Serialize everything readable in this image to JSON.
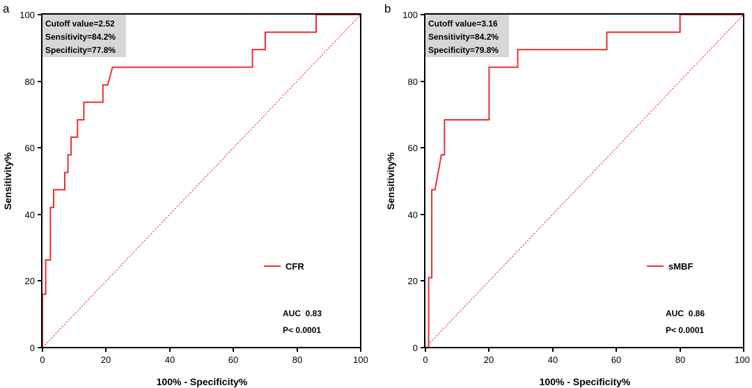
{
  "chart_data": [
    {
      "type": "line",
      "panel_label": "a",
      "xlabel": "100% - Specificity%",
      "ylabel": "Sensitivity%",
      "xlim": [
        0,
        100
      ],
      "ylim": [
        0,
        100
      ],
      "x_ticks": [
        "0",
        "20",
        "40",
        "60",
        "80",
        "100"
      ],
      "y_ticks": [
        "0",
        "20",
        "40",
        "60",
        "80",
        "100"
      ],
      "info_box": [
        "Cutoff value=2.52",
        "Sensitivity=84.2%",
        "Specificity=77.8%"
      ],
      "legend_position": "right",
      "annotations": [
        "AUC  0.83",
        "P< 0.0001"
      ],
      "colors": {
        "roc": "#e8312f",
        "reference": "#e8312f",
        "info_box": "#d7d7d7"
      },
      "series": [
        {
          "name": "CFR",
          "x": [
            0,
            0,
            1,
            1,
            2.5,
            2.5,
            3.5,
            3.5,
            7,
            7,
            8,
            8,
            9,
            9,
            11,
            11,
            13,
            13,
            19,
            19,
            20.5,
            22,
            66,
            66,
            70,
            70,
            86,
            86,
            100
          ],
          "y": [
            0,
            16,
            16,
            26.3,
            26.3,
            42.1,
            42.1,
            47.4,
            47.4,
            52.6,
            52.6,
            57.9,
            57.9,
            63.2,
            63.2,
            68.4,
            68.4,
            73.7,
            73.7,
            78.9,
            78.9,
            84.2,
            84.2,
            89.5,
            89.5,
            94.7,
            94.7,
            100,
            100
          ]
        },
        {
          "name": "",
          "x": [
            0,
            100
          ],
          "y": [
            0,
            100
          ]
        }
      ]
    },
    {
      "type": "line",
      "panel_label": "b",
      "xlabel": "100% - Specificity%",
      "ylabel": "Sensitivity%",
      "xlim": [
        0,
        100
      ],
      "ylim": [
        0,
        100
      ],
      "x_ticks": [
        "0",
        "20",
        "40",
        "60",
        "80",
        "100"
      ],
      "y_ticks": [
        "0",
        "20",
        "40",
        "60",
        "80",
        "100"
      ],
      "info_box": [
        "Cutoff value=3.16",
        "Sensitivity=84.2%",
        "Specificity=79.8%"
      ],
      "legend_position": "right",
      "annotations": [
        "AUC  0.86",
        "P< 0.0001"
      ],
      "colors": {
        "roc": "#e8312f",
        "reference": "#e8312f",
        "info_box": "#d7d7d7"
      },
      "series": [
        {
          "name": "sMBF",
          "x": [
            0,
            1,
            1,
            2,
            2,
            3,
            3,
            5,
            5,
            6,
            6,
            20,
            20,
            29,
            29,
            57,
            57,
            80,
            80,
            100
          ],
          "y": [
            0,
            0,
            21,
            21,
            47.4,
            47.4,
            47.4,
            57.9,
            57.9,
            57.9,
            68.4,
            68.4,
            84.2,
            84.2,
            89.5,
            89.5,
            94.7,
            94.7,
            100,
            100
          ]
        },
        {
          "name": "",
          "x": [
            0,
            100
          ],
          "y": [
            0,
            100
          ]
        }
      ]
    }
  ]
}
